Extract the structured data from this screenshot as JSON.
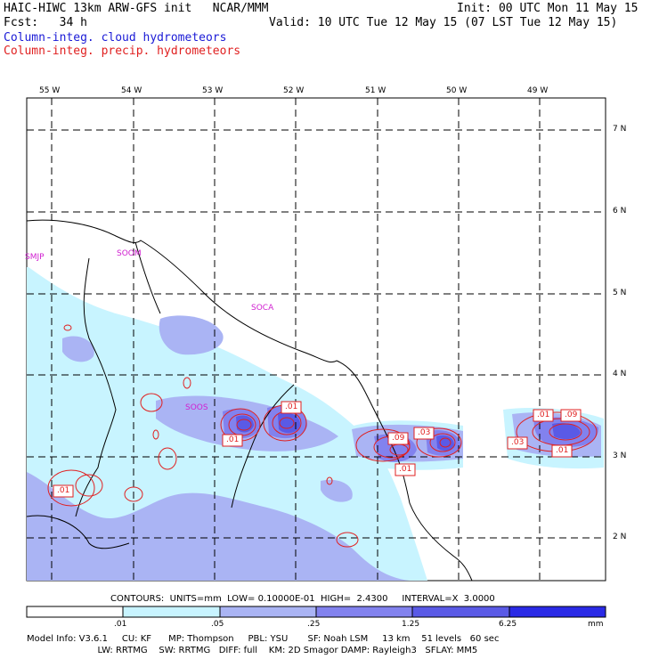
{
  "header": {
    "title": "HAIC-HIWC 13km ARW-GFS init   NCAR/MMM",
    "init": "Init: 00 UTC Mon 11 May 15",
    "fcst": "Fcst:   34 h",
    "valid": "Valid: 10 UTC Tue 12 May 15 (07 LST Tue 12 May 15)",
    "legend_cloud": "Column-integ. cloud hydrometeors",
    "legend_precip": "Column-integ. precip. hydrometeors"
  },
  "axes": {
    "lon_labels": [
      "55 W",
      "54 W",
      "53 W",
      "52 W",
      "51 W",
      "50 W",
      "49 W"
    ],
    "lat_labels": [
      "7 N",
      "6 N",
      "5 N",
      "4 N",
      "3 N",
      "2 N"
    ]
  },
  "places": [
    "SMJP",
    "SOOM",
    "SOCA",
    "SOOS"
  ],
  "contour_labels": [
    ".01",
    ".01",
    ".09",
    ".03",
    ".01",
    ".01",
    ".01",
    ".09",
    ".03",
    ".01"
  ],
  "contour_info": "CONTOURS:  UNITS=mm  LOW= 0.10000E-01  HIGH=  2.4300     INTERVAL=X  3.0000",
  "colorbar": {
    "ticks": [
      ".01",
      ".05",
      ".25",
      "1.25",
      "6.25"
    ],
    "unit": "mm",
    "colors": [
      "#ffffff",
      "#c8f4ff",
      "#aab4f4",
      "#8282ee",
      "#5a5ae6",
      "#2a2ae6"
    ]
  },
  "model_info": {
    "line1": "Model Info: V3.6.1     CU: KF      MP: Thompson     PBL: YSU       SF: Noah LSM     13 km    51 levels   60 sec",
    "line2": "                         LW: RRTMG    SW: RRTMG   DIFF: full    KM: 2D Smagor DAMP: Rayleigh3   SFLAY: MM5"
  }
}
